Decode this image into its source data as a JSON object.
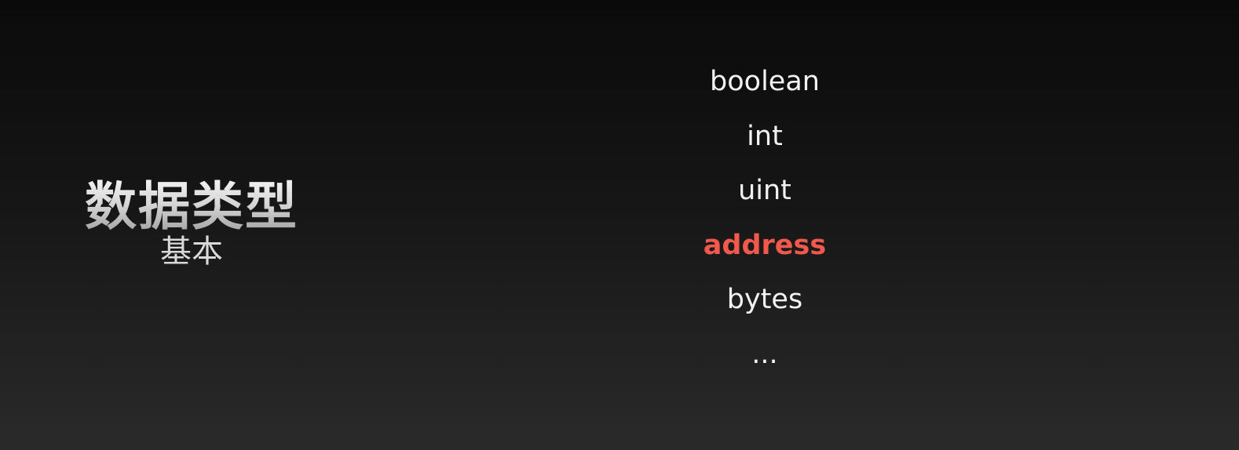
{
  "slide": {
    "title": "数据类型",
    "subtitle": "基本",
    "types": [
      {
        "label": "boolean",
        "highlighted": false
      },
      {
        "label": "int",
        "highlighted": false
      },
      {
        "label": "uint",
        "highlighted": false
      },
      {
        "label": "address",
        "highlighted": true
      },
      {
        "label": "bytes",
        "highlighted": false
      },
      {
        "label": "...",
        "highlighted": false
      }
    ]
  },
  "colors": {
    "background_top": "#0a0a0a",
    "background_bottom": "#2a2a2a",
    "text": "#f2f2f2",
    "highlight": "#f2584c"
  }
}
